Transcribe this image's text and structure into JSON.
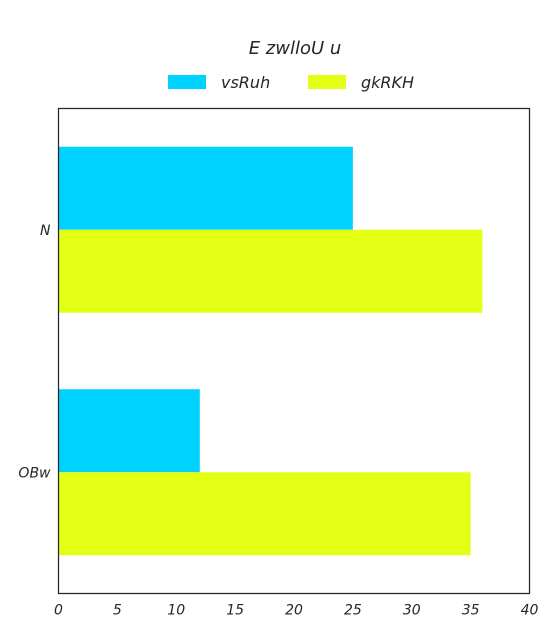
{
  "chart_data": {
    "type": "bar",
    "orientation": "horizontal",
    "title": "E zwlloU u",
    "xlabel": "",
    "ylabel": "",
    "categories": [
      "N",
      "OBw"
    ],
    "series": [
      {
        "name": "vsRuh",
        "values": [
          25,
          12
        ],
        "color": "#00d2ff"
      },
      {
        "name": "gkRKH",
        "values": [
          36,
          35
        ],
        "color": "#e2ff14"
      }
    ],
    "xlim": [
      0,
      40
    ],
    "xticks": [
      0,
      5,
      10,
      15,
      20,
      25,
      30,
      35,
      40
    ],
    "grid": false,
    "legend_position": "top-center"
  }
}
